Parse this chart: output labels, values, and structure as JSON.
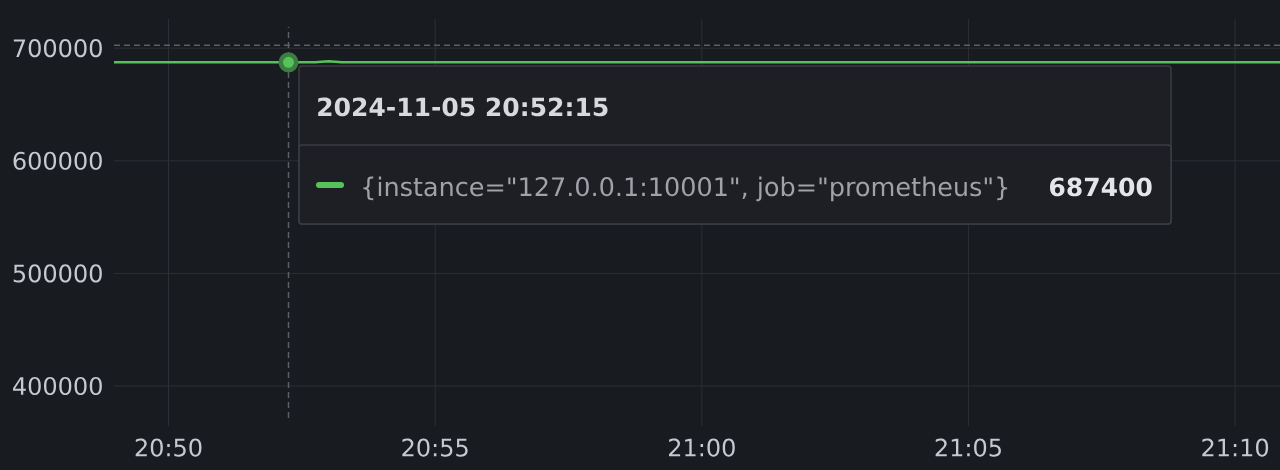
{
  "chart_data": {
    "type": "line",
    "series": [
      {
        "name": "{instance=\"127.0.0.1:10001\", job=\"prometheus\"}",
        "color": "#56c35a",
        "x": [
          20.8163,
          20.870833,
          20.879167,
          20.883333,
          20.8875,
          21.1807
        ],
        "values": [
          687400,
          687400,
          687400,
          688400,
          687400,
          687400
        ]
      },
      {
        "type": "scatter",
        "color": "#56c35a",
        "x": [
          20.870833
        ],
        "values": [
          687400
        ]
      }
    ],
    "xlim": [
      20.8163,
      21.1807
    ],
    "xticks": [
      {
        "value": 20.833333,
        "label": "20:50"
      },
      {
        "value": 20.916667,
        "label": "20:55"
      },
      {
        "value": 21.0,
        "label": "21:00"
      },
      {
        "value": 21.083333,
        "label": "21:05"
      },
      {
        "value": 21.166667,
        "label": "21:10"
      }
    ],
    "ylim": [
      371600,
      718800
    ],
    "yticks": [
      400000,
      500000,
      600000,
      700000
    ],
    "grid": true,
    "legend": "top",
    "line_style": "solid",
    "ref_lines": [
      {
        "axis": "x",
        "value": 20.870833,
        "color": "#5c5f66",
        "line_style": "dashed"
      },
      {
        "axis": "y",
        "value": 702700,
        "color": "#5c5f66",
        "line_style": "dashed"
      }
    ],
    "annotations": [
      "2024-11-05 20:52:15",
      "687400"
    ]
  }
}
